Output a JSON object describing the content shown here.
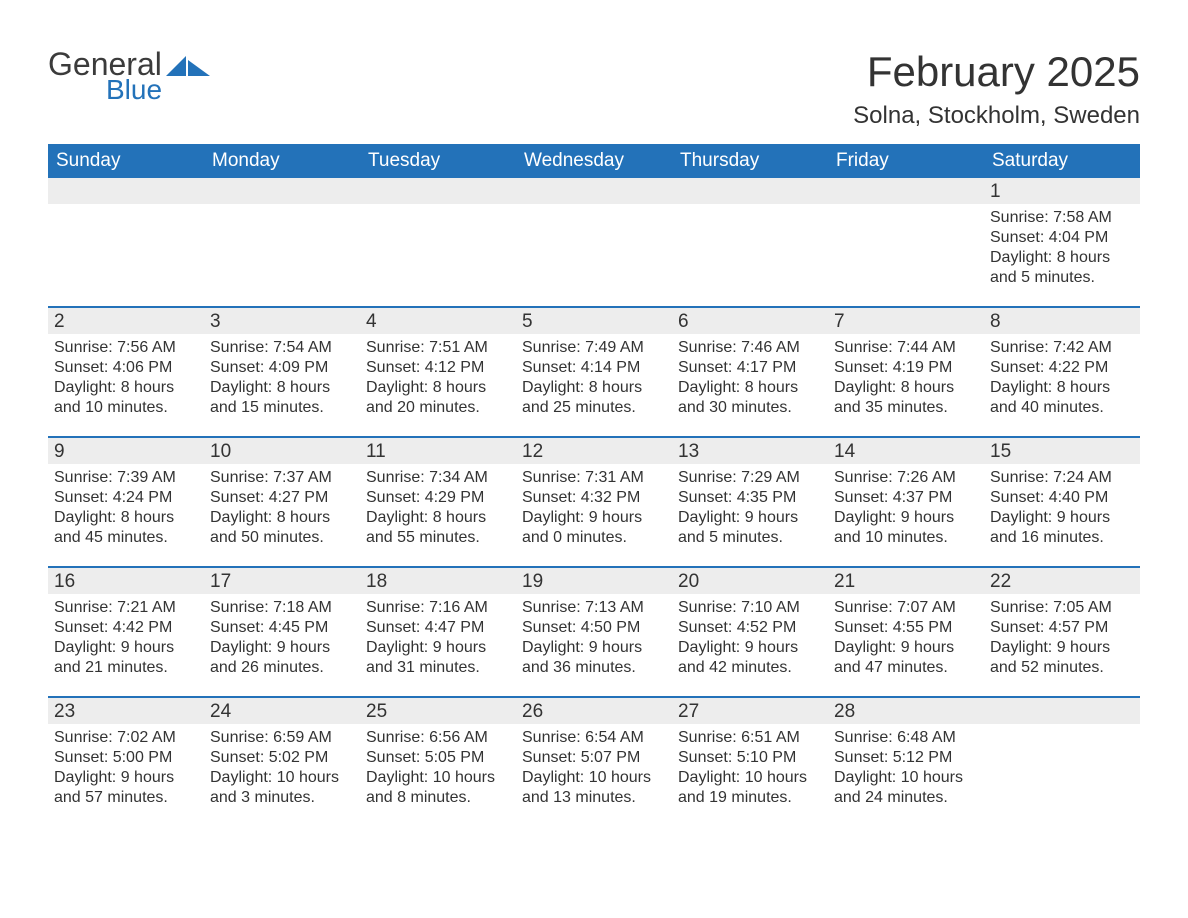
{
  "brand": {
    "word1": "General",
    "word2": "Blue",
    "icon_color": "#2372b9"
  },
  "title": "February 2025",
  "location": "Solna, Stockholm, Sweden",
  "colors": {
    "header_bg": "#2372b9",
    "header_text": "#ffffff",
    "daynum_bg": "#ededed",
    "text": "#333333",
    "rule": "#2372b9",
    "background": "#ffffff"
  },
  "typography": {
    "title_fontsize": 42,
    "location_fontsize": 24,
    "dayheader_fontsize": 19,
    "daynum_fontsize": 19,
    "body_fontsize": 16
  },
  "day_names": [
    "Sunday",
    "Monday",
    "Tuesday",
    "Wednesday",
    "Thursday",
    "Friday",
    "Saturday"
  ],
  "labels": {
    "sunrise": "Sunrise:",
    "sunset": "Sunset:",
    "daylight": "Daylight:"
  },
  "weeks": [
    [
      null,
      null,
      null,
      null,
      null,
      null,
      {
        "n": "1",
        "sunrise": "7:58 AM",
        "sunset": "4:04 PM",
        "dl1": "8 hours",
        "dl2": "and 5 minutes."
      }
    ],
    [
      {
        "n": "2",
        "sunrise": "7:56 AM",
        "sunset": "4:06 PM",
        "dl1": "8 hours",
        "dl2": "and 10 minutes."
      },
      {
        "n": "3",
        "sunrise": "7:54 AM",
        "sunset": "4:09 PM",
        "dl1": "8 hours",
        "dl2": "and 15 minutes."
      },
      {
        "n": "4",
        "sunrise": "7:51 AM",
        "sunset": "4:12 PM",
        "dl1": "8 hours",
        "dl2": "and 20 minutes."
      },
      {
        "n": "5",
        "sunrise": "7:49 AM",
        "sunset": "4:14 PM",
        "dl1": "8 hours",
        "dl2": "and 25 minutes."
      },
      {
        "n": "6",
        "sunrise": "7:46 AM",
        "sunset": "4:17 PM",
        "dl1": "8 hours",
        "dl2": "and 30 minutes."
      },
      {
        "n": "7",
        "sunrise": "7:44 AM",
        "sunset": "4:19 PM",
        "dl1": "8 hours",
        "dl2": "and 35 minutes."
      },
      {
        "n": "8",
        "sunrise": "7:42 AM",
        "sunset": "4:22 PM",
        "dl1": "8 hours",
        "dl2": "and 40 minutes."
      }
    ],
    [
      {
        "n": "9",
        "sunrise": "7:39 AM",
        "sunset": "4:24 PM",
        "dl1": "8 hours",
        "dl2": "and 45 minutes."
      },
      {
        "n": "10",
        "sunrise": "7:37 AM",
        "sunset": "4:27 PM",
        "dl1": "8 hours",
        "dl2": "and 50 minutes."
      },
      {
        "n": "11",
        "sunrise": "7:34 AM",
        "sunset": "4:29 PM",
        "dl1": "8 hours",
        "dl2": "and 55 minutes."
      },
      {
        "n": "12",
        "sunrise": "7:31 AM",
        "sunset": "4:32 PM",
        "dl1": "9 hours",
        "dl2": "and 0 minutes."
      },
      {
        "n": "13",
        "sunrise": "7:29 AM",
        "sunset": "4:35 PM",
        "dl1": "9 hours",
        "dl2": "and 5 minutes."
      },
      {
        "n": "14",
        "sunrise": "7:26 AM",
        "sunset": "4:37 PM",
        "dl1": "9 hours",
        "dl2": "and 10 minutes."
      },
      {
        "n": "15",
        "sunrise": "7:24 AM",
        "sunset": "4:40 PM",
        "dl1": "9 hours",
        "dl2": "and 16 minutes."
      }
    ],
    [
      {
        "n": "16",
        "sunrise": "7:21 AM",
        "sunset": "4:42 PM",
        "dl1": "9 hours",
        "dl2": "and 21 minutes."
      },
      {
        "n": "17",
        "sunrise": "7:18 AM",
        "sunset": "4:45 PM",
        "dl1": "9 hours",
        "dl2": "and 26 minutes."
      },
      {
        "n": "18",
        "sunrise": "7:16 AM",
        "sunset": "4:47 PM",
        "dl1": "9 hours",
        "dl2": "and 31 minutes."
      },
      {
        "n": "19",
        "sunrise": "7:13 AM",
        "sunset": "4:50 PM",
        "dl1": "9 hours",
        "dl2": "and 36 minutes."
      },
      {
        "n": "20",
        "sunrise": "7:10 AM",
        "sunset": "4:52 PM",
        "dl1": "9 hours",
        "dl2": "and 42 minutes."
      },
      {
        "n": "21",
        "sunrise": "7:07 AM",
        "sunset": "4:55 PM",
        "dl1": "9 hours",
        "dl2": "and 47 minutes."
      },
      {
        "n": "22",
        "sunrise": "7:05 AM",
        "sunset": "4:57 PM",
        "dl1": "9 hours",
        "dl2": "and 52 minutes."
      }
    ],
    [
      {
        "n": "23",
        "sunrise": "7:02 AM",
        "sunset": "5:00 PM",
        "dl1": "9 hours",
        "dl2": "and 57 minutes."
      },
      {
        "n": "24",
        "sunrise": "6:59 AM",
        "sunset": "5:02 PM",
        "dl1": "10 hours",
        "dl2": "and 3 minutes."
      },
      {
        "n": "25",
        "sunrise": "6:56 AM",
        "sunset": "5:05 PM",
        "dl1": "10 hours",
        "dl2": "and 8 minutes."
      },
      {
        "n": "26",
        "sunrise": "6:54 AM",
        "sunset": "5:07 PM",
        "dl1": "10 hours",
        "dl2": "and 13 minutes."
      },
      {
        "n": "27",
        "sunrise": "6:51 AM",
        "sunset": "5:10 PM",
        "dl1": "10 hours",
        "dl2": "and 19 minutes."
      },
      {
        "n": "28",
        "sunrise": "6:48 AM",
        "sunset": "5:12 PM",
        "dl1": "10 hours",
        "dl2": "and 24 minutes."
      },
      null
    ]
  ]
}
